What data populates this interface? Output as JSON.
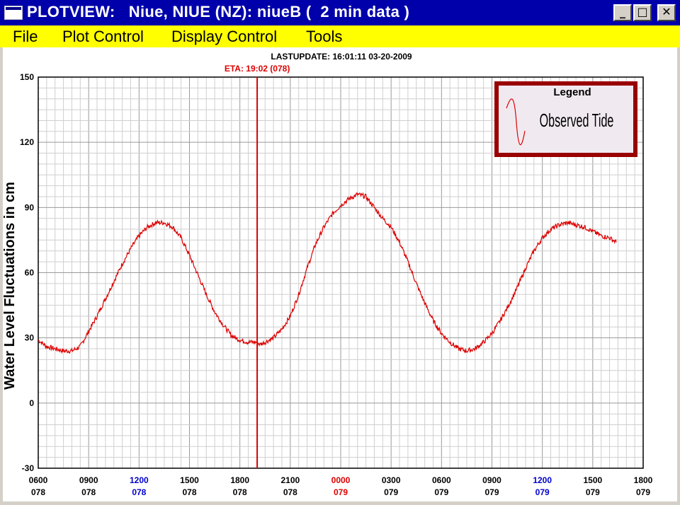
{
  "window": {
    "title": "PLOTVIEW:   Niue, NIUE (NZ): niueB (  2 min data )",
    "buttons": {
      "minimize": "_",
      "maximize": "□",
      "close": "✕"
    }
  },
  "menu": {
    "items": [
      "File",
      "Plot Control",
      "Display Control",
      "Tools"
    ]
  },
  "header": {
    "last_update": "LASTUPDATE: 16:01:11  03-20-2009",
    "eta": "ETA: 19:02 (078)"
  },
  "legend": {
    "title": "Legend",
    "entry": "Observed Tide"
  },
  "colors": {
    "title_bar": "#0000aa",
    "menu_bar": "#ffff00",
    "series": "#dd0000",
    "eta_line": "#dd0000",
    "legend_border": "#990000",
    "legend_bg": "#f0eaf0",
    "tick_label_noon": "#0000cc",
    "tick_label_midnight": "#dd0000"
  },
  "chart_data": {
    "type": "line",
    "ylabel": "Water Level Fluctuations in cm",
    "ylim": [
      -30,
      150
    ],
    "yticks": [
      -30,
      0,
      30,
      60,
      90,
      120,
      150
    ],
    "xlim": [
      6,
      42
    ],
    "x_unit": "hours from 0000 on day 078",
    "xticks": [
      {
        "x": 6,
        "time": "0600",
        "day": "078",
        "color": "black"
      },
      {
        "x": 9,
        "time": "0900",
        "day": "078",
        "color": "black"
      },
      {
        "x": 12,
        "time": "1200",
        "day": "078",
        "color": "blue"
      },
      {
        "x": 15,
        "time": "1500",
        "day": "078",
        "color": "black"
      },
      {
        "x": 18,
        "time": "1800",
        "day": "078",
        "color": "black"
      },
      {
        "x": 21,
        "time": "2100",
        "day": "078",
        "color": "black"
      },
      {
        "x": 24,
        "time": "0000",
        "day": "079",
        "color": "red"
      },
      {
        "x": 27,
        "time": "0300",
        "day": "079",
        "color": "black"
      },
      {
        "x": 30,
        "time": "0600",
        "day": "079",
        "color": "black"
      },
      {
        "x": 33,
        "time": "0900",
        "day": "079",
        "color": "black"
      },
      {
        "x": 36,
        "time": "1200",
        "day": "079",
        "color": "blue"
      },
      {
        "x": 39,
        "time": "1500",
        "day": "079",
        "color": "black"
      },
      {
        "x": 42,
        "time": "1800",
        "day": "079",
        "color": "black"
      }
    ],
    "grid": true,
    "eta_x": 19.03,
    "legend_position": "top-right",
    "series": [
      {
        "name": "Observed Tide",
        "x": [
          6.0,
          6.5,
          7.0,
          7.5,
          8.0,
          8.5,
          9.0,
          9.5,
          10.0,
          10.5,
          11.0,
          11.5,
          12.0,
          12.5,
          13.0,
          13.5,
          14.0,
          14.5,
          15.0,
          15.5,
          16.0,
          16.5,
          17.0,
          17.5,
          18.0,
          18.5,
          19.0,
          19.2,
          19.5,
          20.0,
          20.5,
          21.0,
          21.5,
          22.0,
          22.5,
          23.0,
          23.5,
          24.0,
          24.5,
          25.0,
          25.5,
          26.0,
          26.5,
          27.0,
          27.5,
          28.0,
          28.5,
          29.0,
          29.5,
          30.0,
          30.5,
          31.0,
          31.5,
          32.0,
          32.5,
          33.0,
          33.5,
          34.0,
          34.5,
          35.0,
          35.5,
          36.0,
          36.5,
          37.0,
          37.5,
          38.0,
          38.5,
          39.0,
          39.5,
          40.0,
          40.4
        ],
        "values": [
          29,
          26,
          25,
          24,
          24,
          26,
          33,
          40,
          48,
          56,
          64,
          71,
          77,
          81,
          83,
          83,
          81,
          76,
          68,
          59,
          50,
          42,
          36,
          31,
          29,
          28,
          28,
          27,
          28,
          30,
          34,
          40,
          50,
          62,
          73,
          81,
          87,
          91,
          94,
          96,
          95,
          90,
          85,
          81,
          74,
          65,
          55,
          46,
          38,
          32,
          28,
          25,
          24,
          25,
          28,
          32,
          38,
          45,
          53,
          62,
          70,
          76,
          80,
          82,
          83,
          82,
          81,
          79,
          77,
          76,
          74
        ]
      }
    ]
  }
}
